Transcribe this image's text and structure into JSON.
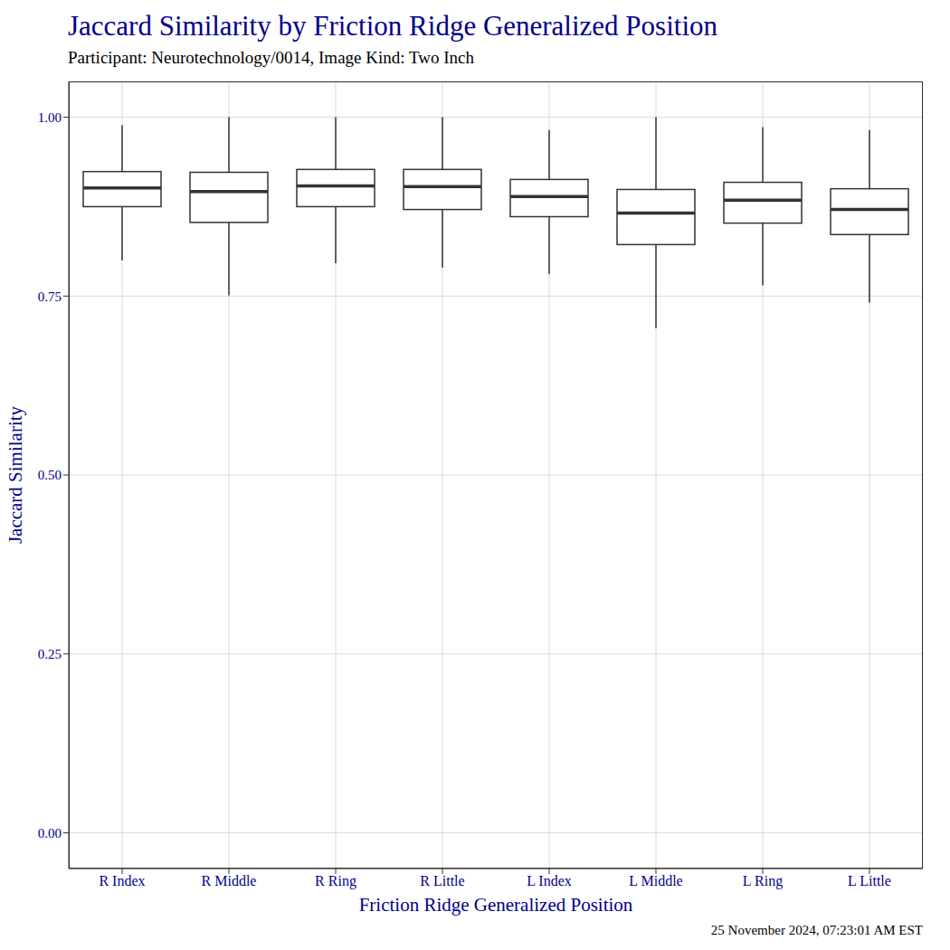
{
  "chart_data": {
    "type": "box",
    "title": "Jaccard Similarity by Friction Ridge Generalized Position",
    "subtitle": "Participant: Neurotechnology/0014, Image Kind: Two Inch",
    "x_label": "Friction Ridge Generalized Position",
    "y_label": "Jaccard Similarity",
    "caption": "25 November 2024, 07:23:01 AM EST",
    "categories": [
      "R Index",
      "R Middle",
      "R Ring",
      "R Little",
      "L Index",
      "L Middle",
      "L Ring",
      "L Little"
    ],
    "min": [
      0.8,
      0.751,
      0.796,
      0.79,
      0.781,
      0.705,
      0.765,
      0.741
    ],
    "q1": [
      0.875,
      0.853,
      0.875,
      0.871,
      0.861,
      0.822,
      0.852,
      0.836
    ],
    "median": [
      0.901,
      0.896,
      0.904,
      0.903,
      0.889,
      0.866,
      0.884,
      0.871
    ],
    "q3": [
      0.924,
      0.923,
      0.927,
      0.927,
      0.913,
      0.899,
      0.909,
      0.9
    ],
    "max": [
      0.989,
      1.0,
      1.0,
      1.0,
      0.982,
      1.0,
      0.986,
      0.982
    ],
    "color": "#333333",
    "ylim": [
      -0.05,
      1.05
    ],
    "yticks": [
      {
        "value": 0,
        "label": "0.00"
      },
      {
        "value": 0.25,
        "label": "0.25"
      },
      {
        "value": 0.5,
        "label": "0.50"
      },
      {
        "value": 0.75,
        "label": "0.75"
      },
      {
        "value": 1,
        "label": "1.00"
      }
    ],
    "grid": true
  }
}
